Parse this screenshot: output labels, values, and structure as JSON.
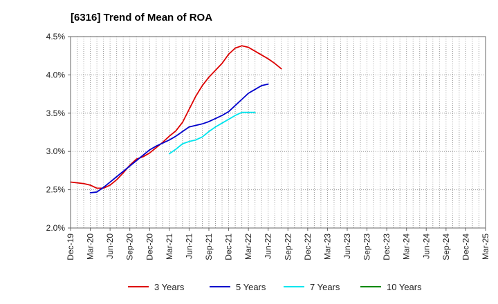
{
  "chart_data": {
    "type": "line",
    "title": "[6316]  Trend of Mean of ROA",
    "xlabel": "",
    "ylabel": "",
    "ylim": [
      2.0,
      4.5
    ],
    "yticks": [
      "2.0%",
      "2.5%",
      "3.0%",
      "3.5%",
      "4.0%",
      "4.5%"
    ],
    "ytick_values": [
      2.0,
      2.5,
      3.0,
      3.5,
      4.0,
      4.5
    ],
    "xticks": [
      "Dec-19",
      "Mar-20",
      "Jun-20",
      "Sep-20",
      "Dec-20",
      "Mar-21",
      "Jun-21",
      "Sep-21",
      "Dec-21",
      "Mar-22",
      "Jun-22",
      "Sep-22",
      "Dec-22",
      "Mar-23",
      "Jun-23",
      "Sep-23",
      "Dec-23",
      "Mar-24",
      "Jun-24",
      "Sep-24",
      "Dec-24",
      "Mar-25"
    ],
    "grid": true,
    "legend_position": "bottom",
    "series": [
      {
        "name": "3 Years",
        "color": "#dd0000",
        "start_quarter": 0,
        "values": [
          2.6,
          2.59,
          2.58,
          2.56,
          2.52,
          2.52,
          2.56,
          2.63,
          2.72,
          2.82,
          2.9,
          2.93,
          2.98,
          3.05,
          3.12,
          3.2,
          3.27,
          3.38,
          3.55,
          3.72,
          3.86,
          3.97,
          4.06,
          4.15,
          4.27,
          4.35,
          4.38,
          4.36,
          4.31,
          4.26,
          4.21,
          4.15,
          4.08
        ]
      },
      {
        "name": "5 Years",
        "color": "#0000cc",
        "start_quarter": 3,
        "values": [
          2.46,
          2.47,
          2.53,
          2.6,
          2.67,
          2.74,
          2.81,
          2.88,
          2.95,
          3.02,
          3.07,
          3.11,
          3.15,
          3.2,
          3.26,
          3.32,
          3.34,
          3.36,
          3.39,
          3.43,
          3.47,
          3.52,
          3.6,
          3.68,
          3.76,
          3.81,
          3.86,
          3.88
        ]
      },
      {
        "name": "7 Years",
        "color": "#00e5ee",
        "start_quarter": 15,
        "values": [
          2.97,
          3.03,
          3.1,
          3.13,
          3.15,
          3.19,
          3.26,
          3.32,
          3.37,
          3.42,
          3.47,
          3.51,
          3.51,
          3.51
        ]
      },
      {
        "name": "10 Years",
        "color": "#008800",
        "start_quarter": 0,
        "values": []
      }
    ]
  }
}
